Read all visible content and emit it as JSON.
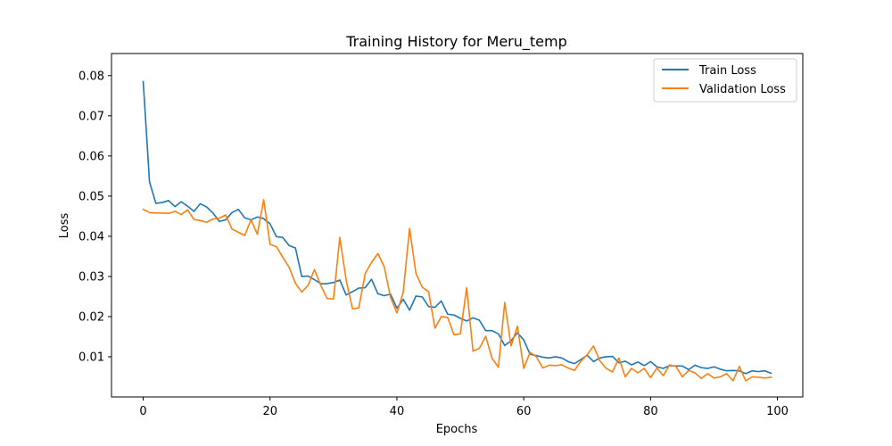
{
  "chart_data": {
    "type": "line",
    "title": "Training History for Meru_temp",
    "xlabel": "Epochs",
    "ylabel": "Loss",
    "xlim": [
      -5,
      104
    ],
    "ylim": [
      0.0,
      0.0855
    ],
    "xticks": [
      0,
      20,
      40,
      60,
      80,
      100
    ],
    "yticks": [
      0.01,
      0.02,
      0.03,
      0.04,
      0.05,
      0.06,
      0.07,
      0.08
    ],
    "grid": false,
    "legend_position": "top-right",
    "series": [
      {
        "name": "Train Loss",
        "color": "#1f77b4",
        "values": [
          0.0785,
          0.0535,
          0.0482,
          0.0484,
          0.0489,
          0.0474,
          0.0486,
          0.0475,
          0.0462,
          0.0481,
          0.0473,
          0.0458,
          0.0437,
          0.0441,
          0.0459,
          0.0467,
          0.0446,
          0.0441,
          0.0448,
          0.0444,
          0.0431,
          0.0399,
          0.0397,
          0.0377,
          0.0371,
          0.03,
          0.0301,
          0.0292,
          0.0282,
          0.0282,
          0.0285,
          0.0291,
          0.0254,
          0.0262,
          0.0271,
          0.0272,
          0.0293,
          0.0257,
          0.0252,
          0.0256,
          0.0221,
          0.0243,
          0.0216,
          0.0251,
          0.0249,
          0.0225,
          0.0223,
          0.0239,
          0.0206,
          0.0204,
          0.0196,
          0.0189,
          0.0197,
          0.0191,
          0.0165,
          0.0165,
          0.0157,
          0.0128,
          0.014,
          0.016,
          0.0142,
          0.0106,
          0.0103,
          0.0099,
          0.0097,
          0.01,
          0.0097,
          0.0088,
          0.0083,
          0.0093,
          0.0104,
          0.0088,
          0.0097,
          0.01,
          0.0101,
          0.0085,
          0.0089,
          0.008,
          0.0087,
          0.0078,
          0.0088,
          0.0075,
          0.0071,
          0.0078,
          0.0077,
          0.0077,
          0.0068,
          0.0079,
          0.0073,
          0.0071,
          0.0075,
          0.0069,
          0.0065,
          0.0066,
          0.0065,
          0.0058,
          0.0065,
          0.0063,
          0.0065,
          0.0059
        ]
      },
      {
        "name": "Validation Loss",
        "color": "#ff7f0e",
        "values": [
          0.0467,
          0.0459,
          0.0458,
          0.0458,
          0.0457,
          0.0462,
          0.0454,
          0.0466,
          0.0442,
          0.0439,
          0.0435,
          0.0443,
          0.0445,
          0.0453,
          0.0418,
          0.041,
          0.0402,
          0.0441,
          0.0405,
          0.0491,
          0.038,
          0.0374,
          0.0348,
          0.0323,
          0.0283,
          0.0261,
          0.0278,
          0.0317,
          0.0278,
          0.0245,
          0.0244,
          0.0397,
          0.0291,
          0.0219,
          0.0222,
          0.0307,
          0.0335,
          0.0357,
          0.0324,
          0.0248,
          0.0209,
          0.0261,
          0.042,
          0.0308,
          0.0273,
          0.0262,
          0.0171,
          0.02,
          0.0198,
          0.0155,
          0.0157,
          0.0272,
          0.0114,
          0.0121,
          0.0151,
          0.0096,
          0.0074,
          0.0235,
          0.0127,
          0.0176,
          0.0071,
          0.0111,
          0.01,
          0.0072,
          0.0079,
          0.0078,
          0.008,
          0.0072,
          0.0066,
          0.0089,
          0.0105,
          0.0127,
          0.009,
          0.0071,
          0.0062,
          0.0097,
          0.005,
          0.0071,
          0.006,
          0.0071,
          0.0048,
          0.0072,
          0.0053,
          0.008,
          0.0076,
          0.005,
          0.0066,
          0.006,
          0.0046,
          0.0058,
          0.0047,
          0.005,
          0.0058,
          0.004,
          0.0076,
          0.004,
          0.005,
          0.0049,
          0.0047,
          0.0049
        ]
      }
    ]
  }
}
